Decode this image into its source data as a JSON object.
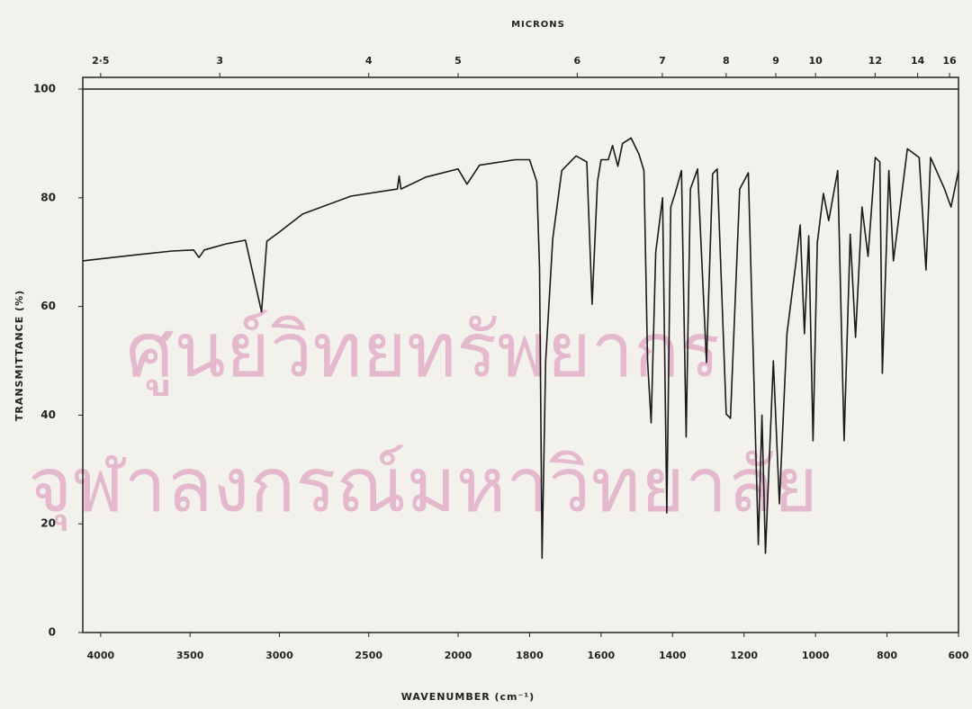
{
  "chart_data": {
    "type": "line",
    "x_label": "WAVENUMBER (cm⁻¹)",
    "y_label": "TRANSMITTANCE (%)",
    "x2_label": "MICRONS",
    "watermark": [
      "ศูนย์วิทยทรัพยากร",
      "จุฬาลงกรณ์มหาวิทยาลัย"
    ],
    "color": "#1a1a1a",
    "xlim": [
      4100,
      600
    ],
    "x_scale_change": {
      "at": 2000,
      "factor": 2
    },
    "xticks": [
      4000,
      3500,
      3000,
      2500,
      2000,
      1800,
      1600,
      1400,
      1200,
      1000,
      800,
      600
    ],
    "x2ticks": [
      {
        "value": 2.5,
        "label": "2·5"
      },
      3,
      4,
      5,
      6,
      7,
      8,
      9,
      10,
      12,
      14,
      16
    ],
    "ylim": [
      0,
      100
    ],
    "yticks": [
      0,
      20,
      40,
      60,
      80,
      100
    ],
    "x": [
      4100,
      3800,
      3600,
      3480,
      3450,
      3420,
      3300,
      3190,
      3100,
      3070,
      3000,
      2870,
      2600,
      2340,
      2330,
      2320,
      2180,
      2000,
      1975,
      1940,
      1840,
      1800,
      1780,
      1772,
      1765,
      1755,
      1735,
      1710,
      1670,
      1640,
      1625,
      1610,
      1600,
      1580,
      1568,
      1553,
      1540,
      1516,
      1494,
      1480,
      1470,
      1460,
      1447,
      1428,
      1416,
      1405,
      1393,
      1375,
      1362,
      1350,
      1330,
      1305,
      1288,
      1275,
      1250,
      1238,
      1212,
      1188,
      1160,
      1150,
      1140,
      1118,
      1101,
      1080,
      1055,
      1043,
      1031,
      1019,
      1007,
      995,
      978,
      963,
      938,
      920,
      903,
      888,
      870,
      853,
      833,
      820,
      813,
      795,
      782,
      743,
      710,
      691,
      678,
      639,
      621,
      600
    ],
    "values": [
      68.4,
      69.5,
      70.2,
      70.4,
      69,
      70.4,
      71.5,
      72.2,
      59,
      72,
      73.7,
      77,
      80.3,
      81.6,
      84,
      81.6,
      83.8,
      85.3,
      82.5,
      86,
      87,
      87,
      83,
      67,
      13.7,
      50,
      72.5,
      85,
      87.7,
      86.6,
      60.4,
      83,
      87,
      87,
      89.6,
      85.8,
      90,
      91,
      88,
      85,
      50,
      38.6,
      70,
      80,
      22,
      78.3,
      80.8,
      85,
      36,
      81.6,
      85.3,
      49.7,
      84.4,
      85.3,
      40.2,
      39.4,
      81.6,
      84.6,
      16.2,
      40,
      14.6,
      50,
      23.7,
      55,
      68,
      75,
      55,
      73,
      35.3,
      71.7,
      80.8,
      75.8,
      85,
      35.3,
      73.3,
      54.3,
      78.3,
      69.2,
      87.4,
      86.6,
      47.7,
      85,
      68.4,
      89,
      87.4,
      66.7,
      87.4,
      81.6,
      78.3,
      85
    ]
  }
}
